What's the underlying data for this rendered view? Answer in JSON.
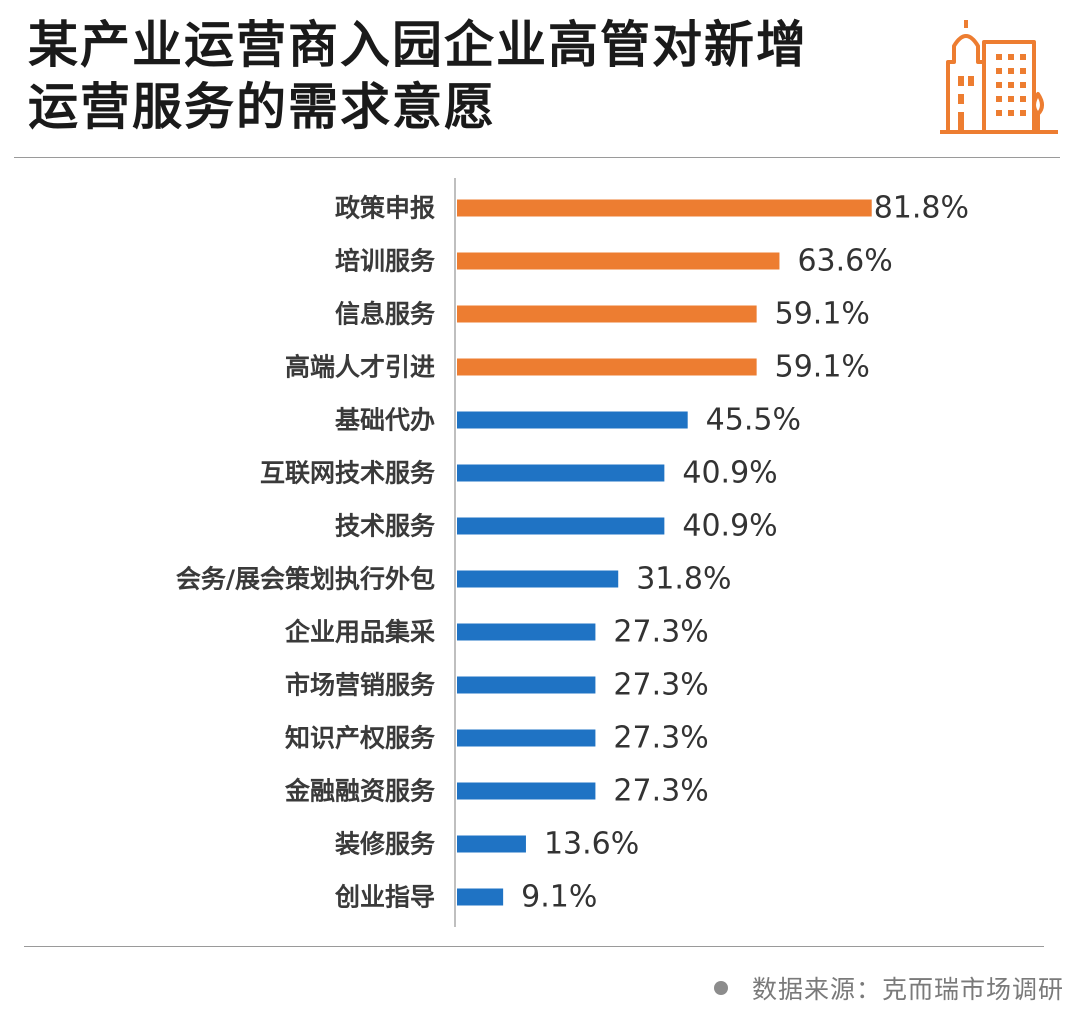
{
  "title": {
    "line1": "某产业运营商入园企业高管对新增",
    "line2": "运营服务的需求意愿"
  },
  "source": {
    "text": "数据来源：克而瑞市场调研"
  },
  "colors": {
    "highlight": "#ED7D31",
    "normal": "#1F73C4",
    "axis": "#bfbfbf",
    "logo": "#ED7D31"
  },
  "chart_data": {
    "type": "bar",
    "orientation": "horizontal",
    "categories": [
      "政策申报",
      "培训服务",
      "信息服务",
      "高端人才引进",
      "基础代办",
      "互联网技术服务",
      "技术服务",
      "会务/展会策划执行外包",
      "企业用品集采",
      "市场营销服务",
      "知识产权服务",
      "金融融资服务",
      "装修服务",
      "创业指导"
    ],
    "values": [
      81.8,
      63.6,
      59.1,
      59.1,
      45.5,
      40.9,
      40.9,
      31.8,
      27.3,
      27.3,
      27.3,
      27.3,
      13.6,
      9.1
    ],
    "value_labels": [
      "81.8%",
      "63.6%",
      "59.1%",
      "59.1%",
      "45.5%",
      "40.9%",
      "40.9%",
      "31.8%",
      "27.3%",
      "27.3%",
      "27.3%",
      "27.3%",
      "13.6%",
      "9.1%"
    ],
    "highlighted": [
      true,
      true,
      true,
      true,
      false,
      false,
      false,
      false,
      false,
      false,
      false,
      false,
      false,
      false
    ],
    "xlim": [
      0,
      100
    ],
    "grid": false,
    "legend": "none"
  }
}
